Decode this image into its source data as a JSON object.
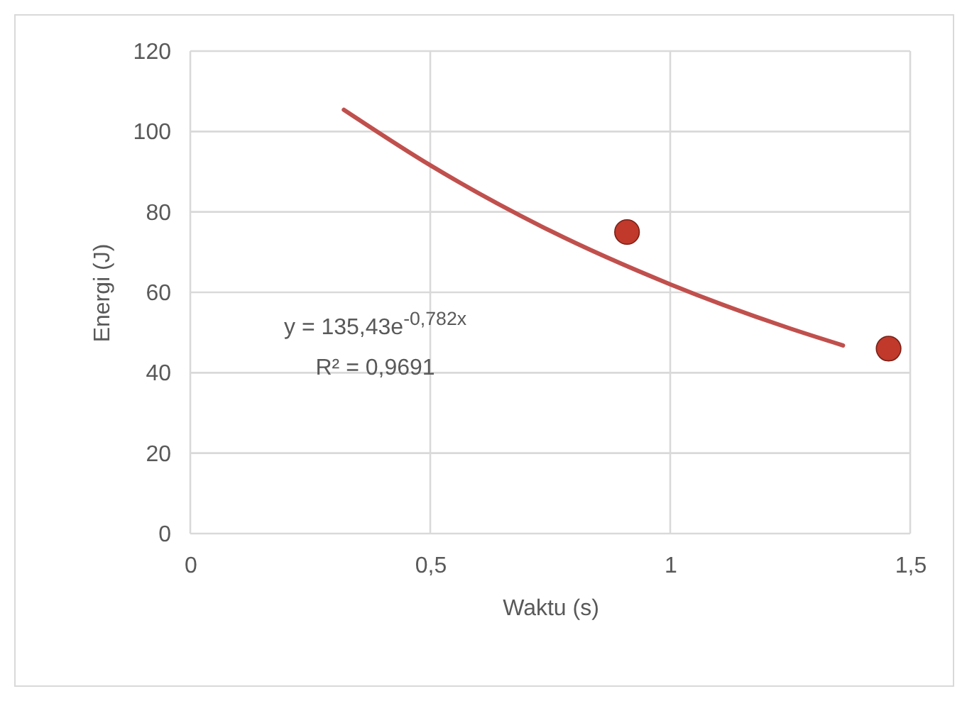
{
  "chart_data": {
    "type": "scatter",
    "xlabel": "Waktu (s)",
    "ylabel": "Energi (J)",
    "xlim": [
      0,
      1.5
    ],
    "xticks": [
      0,
      {
        "value": 0.5,
        "label": "0,5"
      },
      1,
      {
        "value": 1.5,
        "label": "1,5"
      }
    ],
    "ylim": [
      0,
      120
    ],
    "yticks": [
      0,
      20,
      40,
      60,
      80,
      100,
      120
    ],
    "grid": true,
    "series": [
      {
        "color": "#c0392b",
        "marker": "circle",
        "x": [
          0.91,
          1.455
        ],
        "values": [
          75,
          46
        ]
      },
      {
        "type": "line",
        "color": "#c0504d",
        "marker": "none",
        "line_style": "solid",
        "x": [
          0.32,
          0.5,
          0.75,
          1.0,
          1.25,
          1.36
        ],
        "values": [
          105.4,
          91.6,
          75.3,
          62.0,
          51.0,
          46.8
        ]
      }
    ],
    "annotations": [
      "y = 135,43e$^{-0,782x}$",
      "R² = 0,9691"
    ]
  }
}
